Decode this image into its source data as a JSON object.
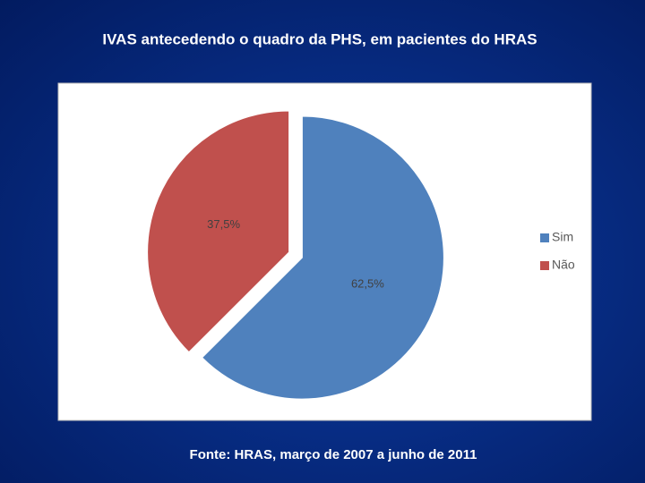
{
  "chart_data": {
    "type": "pie",
    "title": "IVAS antecedendo o quadro da PHS, em pacientes do HRAS",
    "categories": [
      "Sim",
      "Não"
    ],
    "values": [
      62.5,
      37.5
    ],
    "value_labels": [
      "62,5%",
      "37,5%"
    ],
    "colors": [
      "#4f81bd",
      "#c0504d"
    ],
    "legend": "right",
    "source": "Fonte: HRAS, março de 2007 a junho de 2011"
  }
}
